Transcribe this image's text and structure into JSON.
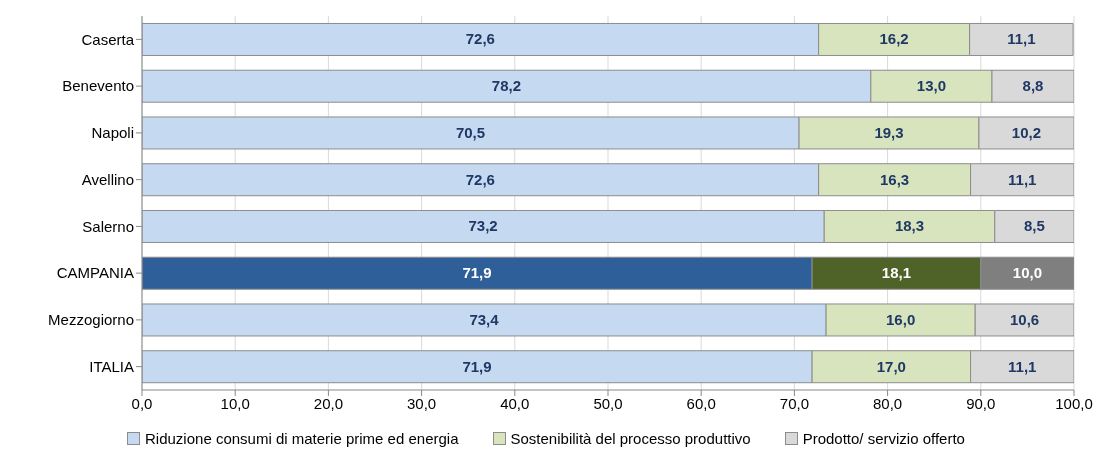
{
  "chart_data": {
    "type": "bar",
    "orientation": "horizontal",
    "stacked": true,
    "categories": [
      "Caserta",
      "Benevento",
      "Napoli",
      "Avellino",
      "Salerno",
      "CAMPANIA",
      "Mezzogiorno",
      "ITALIA"
    ],
    "series": [
      {
        "name": "Riduzione consumi di materie prime ed energia",
        "color": "#c5d9f1",
        "colors": [
          "#c5d9f1",
          "#c5d9f1",
          "#c5d9f1",
          "#c5d9f1",
          "#c5d9f1",
          "#2f5f98",
          "#c5d9f1",
          "#c5d9f1"
        ],
        "values": [
          72.6,
          78.2,
          70.5,
          72.6,
          73.2,
          71.9,
          73.4,
          71.9
        ],
        "value_labels": [
          "72,6",
          "78,2",
          "70,5",
          "72,6",
          "73,2",
          "71,9",
          "73,4",
          "71,9"
        ]
      },
      {
        "name": "Sostenibilità del processo produttivo",
        "color": "#d7e4bd",
        "colors": [
          "#d7e4bd",
          "#d7e4bd",
          "#d7e4bd",
          "#d7e4bd",
          "#d7e4bd",
          "#4f6228",
          "#d7e4bd",
          "#d7e4bd"
        ],
        "values": [
          16.2,
          13.0,
          19.3,
          16.3,
          18.3,
          18.1,
          16.0,
          17.0
        ],
        "value_labels": [
          "16,2",
          "13,0",
          "19,3",
          "16,3",
          "18,3",
          "18,1",
          "16,0",
          "17,0"
        ]
      },
      {
        "name": "Prodotto/ servizio offerto",
        "color": "#d9d9d9",
        "colors": [
          "#d9d9d9",
          "#d9d9d9",
          "#d9d9d9",
          "#d9d9d9",
          "#d9d9d9",
          "#7f7f7f",
          "#d9d9d9",
          "#d9d9d9"
        ],
        "values": [
          11.1,
          8.8,
          10.2,
          11.1,
          8.5,
          10.0,
          10.6,
          11.1
        ],
        "value_labels": [
          "11,1",
          "8,8",
          "10,2",
          "11,1",
          "8,5",
          "10,0",
          "10,6",
          "11,1"
        ]
      }
    ],
    "xlim": [
      0,
      100
    ],
    "xticks": [
      {
        "value": 0,
        "label": "0,0"
      },
      {
        "value": 10,
        "label": "10,0"
      },
      {
        "value": 20,
        "label": "20,0"
      },
      {
        "value": 30,
        "label": "30,0"
      },
      {
        "value": 40,
        "label": "40,0"
      },
      {
        "value": 50,
        "label": "50,0"
      },
      {
        "value": 60,
        "label": "60,0"
      },
      {
        "value": 70,
        "label": "70,0"
      },
      {
        "value": 80,
        "label": "80,0"
      },
      {
        "value": 90,
        "label": "90,0"
      },
      {
        "value": 100,
        "label": "100,0"
      }
    ],
    "grid": "x",
    "legend": "bottom"
  }
}
